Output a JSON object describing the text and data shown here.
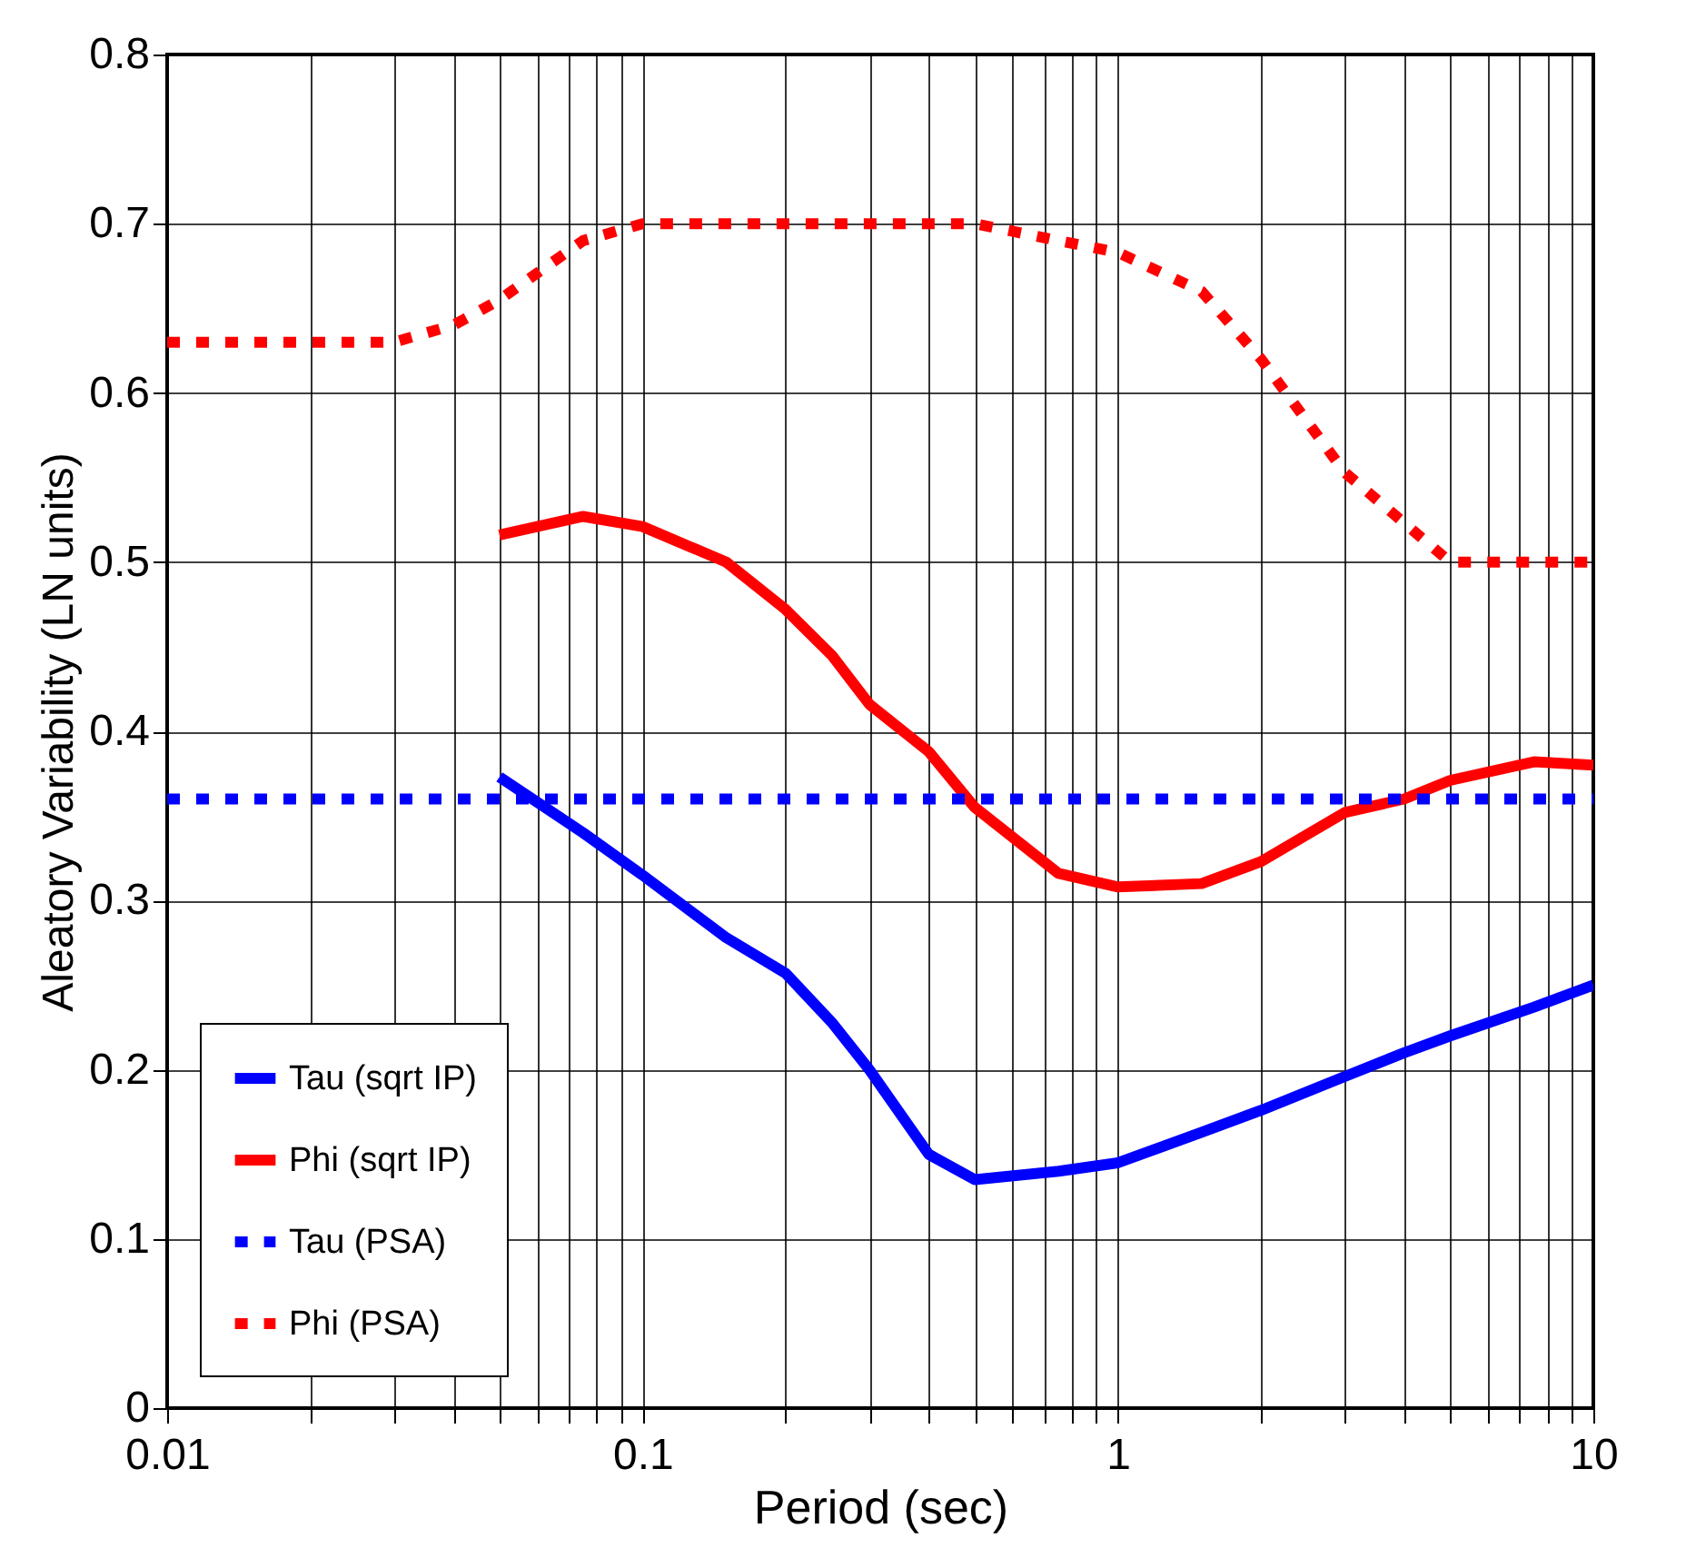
{
  "chart_data": {
    "type": "line",
    "xlabel": "Period (sec)",
    "ylabel": "Aleatory Variability (LN units)",
    "log": "x",
    "grid": true,
    "legend": "bottom left",
    "marker": "none",
    "xlim": [
      0.01,
      10
    ],
    "ylim": [
      0,
      0.8
    ],
    "xticks": [
      0.01,
      {
        "value": 0.02,
        "label": null
      },
      {
        "value": 0.03,
        "label": null
      },
      {
        "value": 0.04,
        "label": null
      },
      {
        "value": 0.05,
        "label": null
      },
      {
        "value": 0.06,
        "label": null
      },
      {
        "value": 0.07,
        "label": null
      },
      {
        "value": 0.08,
        "label": null
      },
      {
        "value": 0.09,
        "label": null
      },
      0.1,
      {
        "value": 0.2,
        "label": null
      },
      {
        "value": 0.3,
        "label": null
      },
      {
        "value": 0.4,
        "label": null
      },
      {
        "value": 0.5,
        "label": null
      },
      {
        "value": 0.6,
        "label": null
      },
      {
        "value": 0.7,
        "label": null
      },
      {
        "value": 0.8,
        "label": null
      },
      {
        "value": 0.9,
        "label": null
      },
      1,
      {
        "value": 2,
        "label": null
      },
      {
        "value": 3,
        "label": null
      },
      {
        "value": 4,
        "label": null
      },
      {
        "value": 5,
        "label": null
      },
      {
        "value": 6,
        "label": null
      },
      {
        "value": 7,
        "label": null
      },
      {
        "value": 8,
        "label": null
      },
      {
        "value": 9,
        "label": null
      },
      10
    ],
    "yticks": [
      0,
      0.1,
      0.2,
      0.3,
      0.4,
      0.5,
      0.6,
      0.7,
      0.8
    ],
    "series": [
      {
        "name": "Tau (sqrt IP)",
        "color": "#0000ff",
        "line_style": "solid",
        "x": [
          0.05,
          0.075,
          0.1,
          0.15,
          0.2,
          0.25,
          0.3,
          0.4,
          0.5,
          0.75,
          1,
          1.5,
          2,
          3,
          4,
          5,
          7.5,
          10
        ],
        "values": [
          0.373,
          0.34,
          0.315,
          0.278,
          0.257,
          0.228,
          0.2,
          0.15,
          0.135,
          0.14,
          0.145,
          0.163,
          0.176,
          0.196,
          0.21,
          0.22,
          0.237,
          0.25
        ]
      },
      {
        "name": "Phi (sqrt IP)",
        "color": "#ff0000",
        "line_style": "solid",
        "x": [
          0.05,
          0.075,
          0.1,
          0.15,
          0.2,
          0.25,
          0.3,
          0.4,
          0.5,
          0.75,
          1,
          1.5,
          2,
          3,
          4,
          5,
          7.5,
          10
        ],
        "values": [
          0.516,
          0.527,
          0.521,
          0.5,
          0.472,
          0.445,
          0.416,
          0.388,
          0.355,
          0.316,
          0.308,
          0.31,
          0.323,
          0.352,
          0.36,
          0.371,
          0.382,
          0.38
        ]
      },
      {
        "name": "Tau (PSA)",
        "color": "#0000ff",
        "line_style": "dotted",
        "x": [
          0.01,
          10
        ],
        "values": [
          0.36,
          0.36
        ]
      },
      {
        "name": "Phi (PSA)",
        "color": "#ff0000",
        "line_style": "dotted",
        "x": [
          0.01,
          0.03,
          0.04,
          0.05,
          0.075,
          0.1,
          0.5,
          0.75,
          1,
          1.5,
          2,
          3,
          5,
          10
        ],
        "values": [
          0.63,
          0.63,
          0.64,
          0.655,
          0.69,
          0.7,
          0.7,
          0.69,
          0.683,
          0.66,
          0.62,
          0.553,
          0.5,
          0.5
        ]
      }
    ]
  }
}
